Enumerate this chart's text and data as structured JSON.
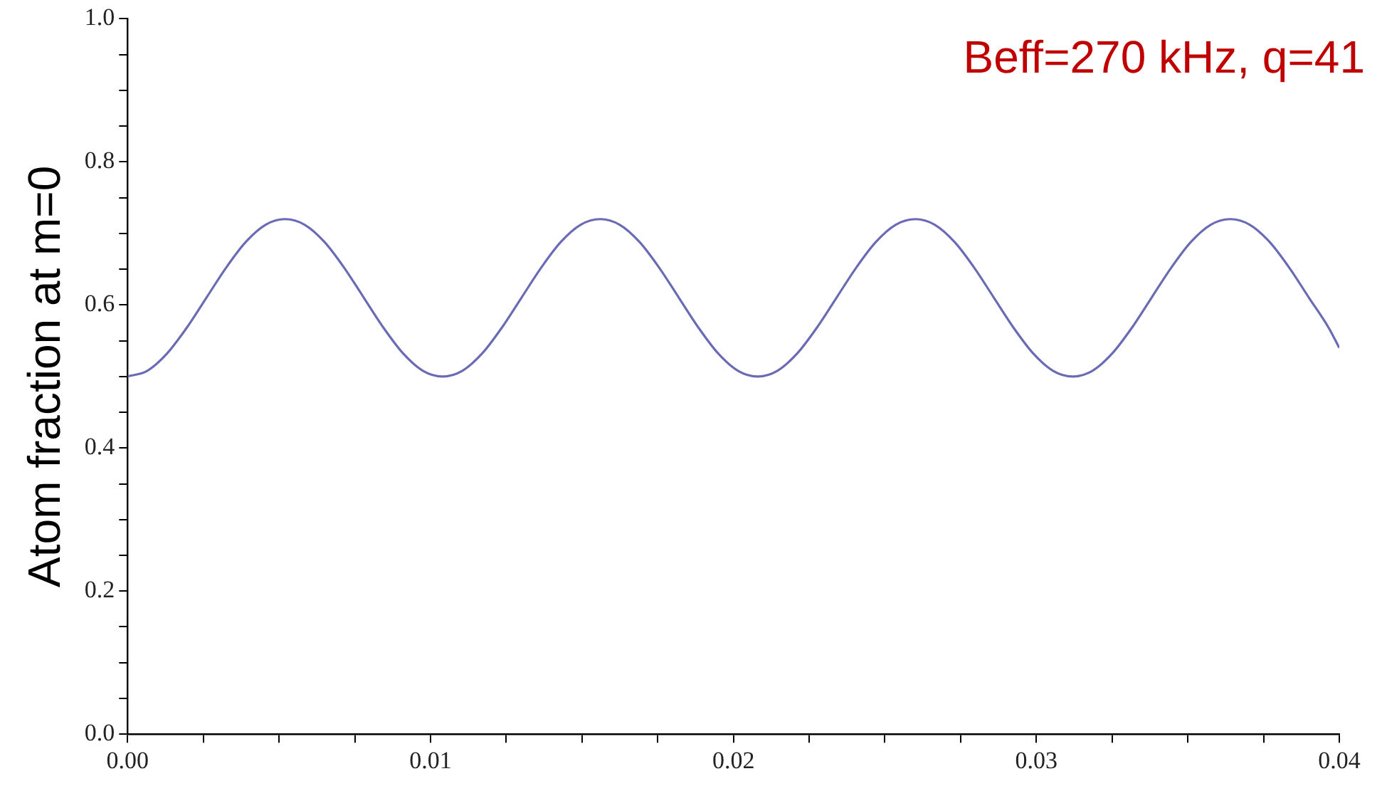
{
  "chart_data": {
    "type": "line",
    "ylabel": "Atom fraction at m=0",
    "annotations": [
      "Beff=270 kHz, q=41"
    ],
    "xlim": [
      0,
      0.04
    ],
    "ylim": [
      0,
      1.0
    ],
    "xticks": [
      {
        "value": 0,
        "label": "0.00"
      },
      {
        "value": 0.0025,
        "label": null
      },
      {
        "value": 0.005,
        "label": null
      },
      {
        "value": 0.0075,
        "label": null
      },
      {
        "value": 0.01,
        "label": "0.01"
      },
      {
        "value": 0.0125,
        "label": null
      },
      {
        "value": 0.015,
        "label": null
      },
      {
        "value": 0.0175,
        "label": null
      },
      {
        "value": 0.02,
        "label": "0.02"
      },
      {
        "value": 0.0225,
        "label": null
      },
      {
        "value": 0.025,
        "label": null
      },
      {
        "value": 0.0275,
        "label": null
      },
      {
        "value": 0.03,
        "label": "0.03"
      },
      {
        "value": 0.0325,
        "label": null
      },
      {
        "value": 0.035,
        "label": null
      },
      {
        "value": 0.0375,
        "label": null
      },
      {
        "value": 0.04,
        "label": "0.04"
      }
    ],
    "yticks": [
      {
        "value": 0,
        "label": "0.0"
      },
      {
        "value": 0.05,
        "label": null
      },
      {
        "value": 0.1,
        "label": null
      },
      {
        "value": 0.15,
        "label": null
      },
      {
        "value": 0.2,
        "label": "0.2"
      },
      {
        "value": 0.25,
        "label": null
      },
      {
        "value": 0.3,
        "label": null
      },
      {
        "value": 0.35,
        "label": null
      },
      {
        "value": 0.4,
        "label": "0.4"
      },
      {
        "value": 0.45,
        "label": null
      },
      {
        "value": 0.5,
        "label": null
      },
      {
        "value": 0.55,
        "label": null
      },
      {
        "value": 0.6,
        "label": "0.6"
      },
      {
        "value": 0.65,
        "label": null
      },
      {
        "value": 0.7,
        "label": null
      },
      {
        "value": 0.75,
        "label": null
      },
      {
        "value": 0.8,
        "label": "0.8"
      },
      {
        "value": 0.85,
        "label": null
      },
      {
        "value": 0.9,
        "label": null
      },
      {
        "value": 0.95,
        "label": null
      },
      {
        "value": 1.0,
        "label": "1.0"
      }
    ],
    "grid": false,
    "legend": false,
    "marker": "none",
    "line_style": "solid",
    "x": [
      0,
      0.00065,
      0.0013,
      0.00195,
      0.0026,
      0.00325,
      0.0039,
      0.00455,
      0.0052,
      0.00585,
      0.0065,
      0.00715,
      0.0078,
      0.00845,
      0.0091,
      0.00975,
      0.0104,
      0.01105,
      0.0117,
      0.01235,
      0.013,
      0.01365,
      0.0143,
      0.01495,
      0.0156,
      0.01625,
      0.0169,
      0.01755,
      0.0182,
      0.01885,
      0.0195,
      0.02015,
      0.0208,
      0.02145,
      0.0221,
      0.02275,
      0.0234,
      0.02405,
      0.0247,
      0.02535,
      0.026,
      0.02665,
      0.0273,
      0.02795,
      0.0286,
      0.02925,
      0.0299,
      0.03055,
      0.0312,
      0.03185,
      0.0325,
      0.03315,
      0.0338,
      0.03445,
      0.0351,
      0.03575,
      0.0364,
      0.03705,
      0.0377,
      0.03835,
      0.039,
      0.03965,
      0.04
    ],
    "series": [
      {
        "color": "#6b6bb5",
        "values": [
          0.5,
          0.508,
          0.532,
          0.568,
          0.61,
          0.652,
          0.688,
          0.712,
          0.72,
          0.712,
          0.688,
          0.652,
          0.61,
          0.568,
          0.532,
          0.508,
          0.5,
          0.508,
          0.532,
          0.568,
          0.61,
          0.652,
          0.688,
          0.712,
          0.72,
          0.712,
          0.688,
          0.652,
          0.61,
          0.568,
          0.532,
          0.508,
          0.5,
          0.508,
          0.532,
          0.568,
          0.61,
          0.652,
          0.688,
          0.712,
          0.72,
          0.712,
          0.688,
          0.652,
          0.61,
          0.568,
          0.532,
          0.508,
          0.5,
          0.508,
          0.532,
          0.568,
          0.61,
          0.652,
          0.688,
          0.712,
          0.72,
          0.712,
          0.688,
          0.652,
          0.61,
          0.568,
          0.54
        ]
      }
    ]
  }
}
